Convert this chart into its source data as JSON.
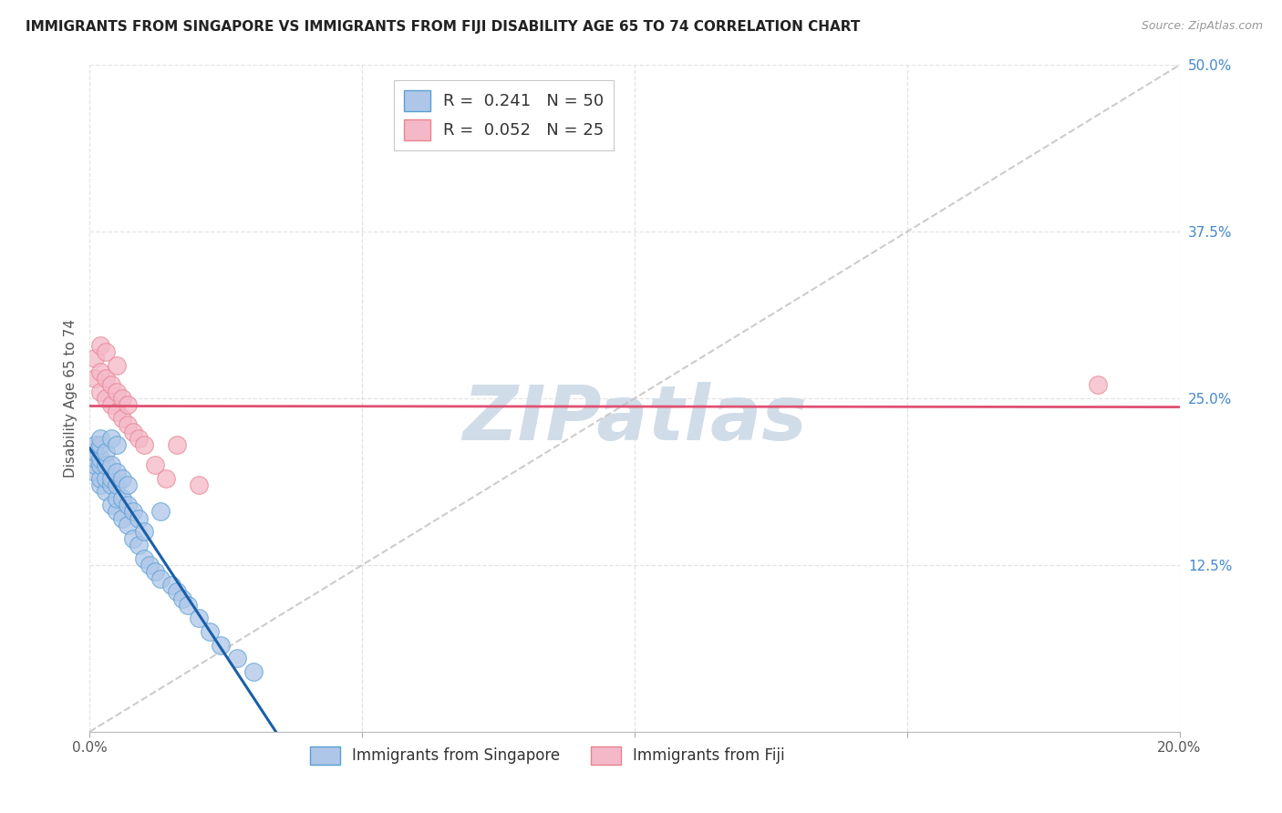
{
  "title": "IMMIGRANTS FROM SINGAPORE VS IMMIGRANTS FROM FIJI DISABILITY AGE 65 TO 74 CORRELATION CHART",
  "source": "Source: ZipAtlas.com",
  "ylabel": "Disability Age 65 to 74",
  "xlim": [
    0.0,
    0.2
  ],
  "ylim": [
    0.0,
    0.5
  ],
  "xticks": [
    0.0,
    0.05,
    0.1,
    0.15,
    0.2
  ],
  "yticks": [
    0.0,
    0.125,
    0.25,
    0.375,
    0.5
  ],
  "singapore_R": 0.241,
  "singapore_N": 50,
  "fiji_R": 0.052,
  "fiji_N": 25,
  "singapore_color": "#aec6e8",
  "singapore_edge": "#5a9fd4",
  "fiji_color": "#f4b8c8",
  "fiji_edge": "#e8838f",
  "singapore_line_color": "#1a5fa8",
  "fiji_line_color": "#e05070",
  "diagonal_color": "#c0c0c0",
  "watermark": "ZIPatlas",
  "watermark_color": "#d0dde8",
  "legend_labels": [
    "Immigrants from Singapore",
    "Immigrants from Fiji"
  ],
  "legend_R_color": "#4488cc",
  "legend_N_color": "#44aacc",
  "ytick_color": "#4488cc",
  "singapore_x": [
    0.001,
    0.001,
    0.001,
    0.001,
    0.001,
    0.002,
    0.002,
    0.002,
    0.002,
    0.002,
    0.002,
    0.003,
    0.003,
    0.003,
    0.003,
    0.004,
    0.004,
    0.004,
    0.004,
    0.004,
    0.005,
    0.005,
    0.005,
    0.005,
    0.005,
    0.006,
    0.006,
    0.006,
    0.007,
    0.007,
    0.007,
    0.008,
    0.008,
    0.009,
    0.009,
    0.01,
    0.01,
    0.011,
    0.012,
    0.013,
    0.013,
    0.015,
    0.016,
    0.017,
    0.018,
    0.02,
    0.022,
    0.024,
    0.027,
    0.03
  ],
  "singapore_y": [
    0.195,
    0.2,
    0.205,
    0.21,
    0.215,
    0.185,
    0.19,
    0.2,
    0.205,
    0.215,
    0.22,
    0.18,
    0.19,
    0.2,
    0.21,
    0.17,
    0.185,
    0.19,
    0.2,
    0.22,
    0.165,
    0.175,
    0.185,
    0.195,
    0.215,
    0.16,
    0.175,
    0.19,
    0.155,
    0.17,
    0.185,
    0.145,
    0.165,
    0.14,
    0.16,
    0.13,
    0.15,
    0.125,
    0.12,
    0.115,
    0.165,
    0.11,
    0.105,
    0.1,
    0.095,
    0.085,
    0.075,
    0.065,
    0.055,
    0.045
  ],
  "fiji_x": [
    0.001,
    0.001,
    0.002,
    0.002,
    0.002,
    0.003,
    0.003,
    0.003,
    0.004,
    0.004,
    0.005,
    0.005,
    0.005,
    0.006,
    0.006,
    0.007,
    0.007,
    0.008,
    0.009,
    0.01,
    0.012,
    0.014,
    0.016,
    0.02,
    0.185
  ],
  "fiji_y": [
    0.265,
    0.28,
    0.255,
    0.27,
    0.29,
    0.25,
    0.265,
    0.285,
    0.245,
    0.26,
    0.24,
    0.255,
    0.275,
    0.235,
    0.25,
    0.23,
    0.245,
    0.225,
    0.22,
    0.215,
    0.2,
    0.19,
    0.215,
    0.185,
    0.26
  ]
}
